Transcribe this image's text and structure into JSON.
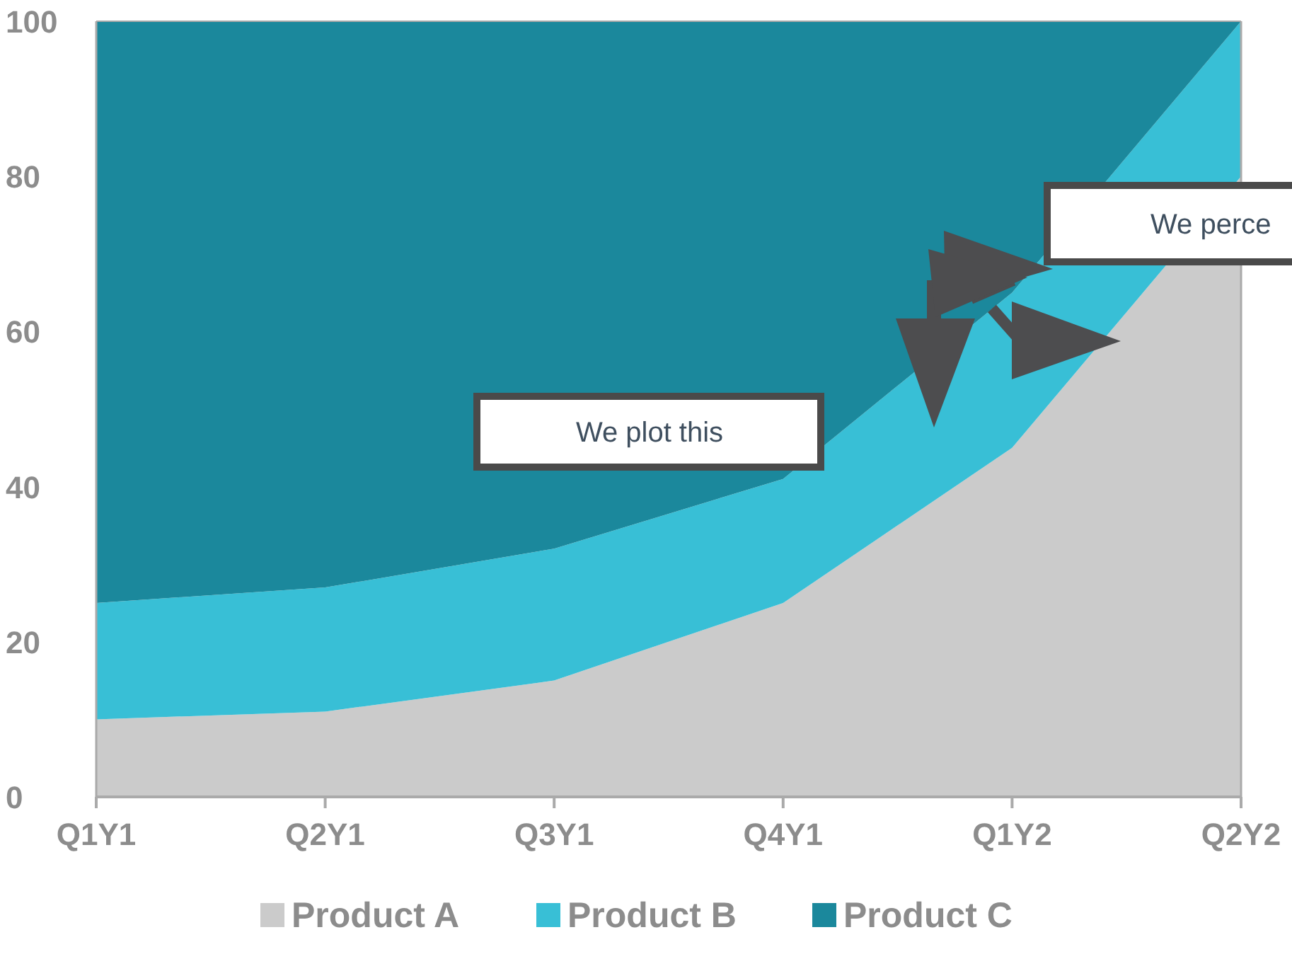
{
  "chart_data": {
    "type": "area",
    "stacked": true,
    "categories": [
      "Q1Y1",
      "Q2Y1",
      "Q3Y1",
      "Q4Y1",
      "Q1Y2",
      "Q2Y2"
    ],
    "series": [
      {
        "name": "Product A",
        "color": "#cbcbcb",
        "values": [
          10,
          11,
          15,
          25,
          45,
          80
        ]
      },
      {
        "name": "Product B",
        "color": "#38bfd6",
        "values": [
          15,
          16,
          17,
          16,
          20,
          20
        ]
      },
      {
        "name": "Product C",
        "color": "#1b889c",
        "values": [
          75,
          73,
          68,
          59,
          35,
          0
        ]
      }
    ],
    "ylim": [
      0,
      100
    ],
    "yticks": [
      0,
      20,
      40,
      60,
      80,
      100
    ],
    "legend": "bottom",
    "grid": false,
    "annotations": [
      "We plot this",
      "We perce"
    ]
  }
}
